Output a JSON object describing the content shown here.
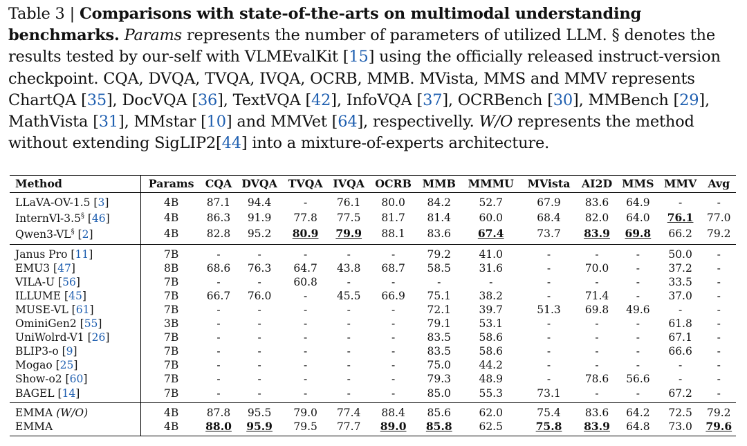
{
  "caption": {
    "label": "Table 3 | ",
    "bold": "Comparisons with state-of-the-arts on multimodal understanding benchmarks.",
    "p_params": "Params",
    "t1": " represents the number of parameters of utilized LLM. § denotes the results tested by our-self with VLMEvalKit [",
    "c1": "15",
    "t2": "] using the officially released instruct-version checkpoint. CQA, DVQA, TVQA, IVQA, OCRB, MMB. MVista, MMS and MMV represents ChartQA [",
    "c2": "35",
    "t3": "], DocVQA [",
    "c3": "36",
    "t4": "], TextVQA [",
    "c4": "42",
    "t5": "], InfoVQA [",
    "c5": "37",
    "t6": "], OCRBench [",
    "c6": "30",
    "t7": "], MMBench [",
    "c7": "29",
    "t8": "], MathVista [",
    "c8": "31",
    "t9": "], MMstar [",
    "c9": "10",
    "t10": "] and MMVet [",
    "c10": "64",
    "t11": "], respectivelly. ",
    "wo": "W/O",
    "t12": " represents the method without extending SigLIP2[",
    "c11": "44",
    "t13": "] into a mixture-of-experts architecture."
  },
  "table": {
    "headers": [
      "Method",
      "Params",
      "CQA",
      "DVQA",
      "TVQA",
      "IVQA",
      "OCRB",
      "MMB",
      "MMMU",
      "MVista",
      "AI2D",
      "MMS",
      "MMV",
      "Avg"
    ],
    "groups": [
      [
        {
          "name": "LLaVA-OV-1.5 [",
          "cite": "3",
          "sup": "",
          "name_end": "]",
          "cells": [
            "4B",
            "87.1",
            "94.4",
            "-",
            "76.1",
            "80.0",
            "84.2",
            "52.7",
            "67.9",
            "83.6",
            "64.9",
            "-",
            "-"
          ],
          "bold": []
        },
        {
          "name": "InternVl-3.5",
          "sup": "§",
          "cite_pre": " [",
          "cite": "46",
          "name_end": "]",
          "cells": [
            "4B",
            "86.3",
            "91.9",
            "77.8",
            "77.5",
            "81.7",
            "81.4",
            "60.0",
            "68.4",
            "82.0",
            "64.0",
            "76.1",
            "77.0"
          ],
          "bold": [
            11
          ]
        },
        {
          "name": "Qwen3-VL",
          "sup": "§",
          "cite_pre": " [",
          "cite": "2",
          "name_end": "]",
          "cells": [
            "4B",
            "82.8",
            "95.2",
            "80.9",
            "79.9",
            "88.1",
            "83.6",
            "67.4",
            "73.7",
            "83.9",
            "69.8",
            "66.2",
            "79.2"
          ],
          "bold": [
            3,
            4,
            7,
            9,
            10
          ]
        }
      ],
      [
        {
          "name": "Janus Pro [",
          "cite": "11",
          "name_end": "]",
          "cells": [
            "7B",
            "-",
            "-",
            "-",
            "-",
            "-",
            "79.2",
            "41.0",
            "-",
            "-",
            "-",
            "50.0",
            "-"
          ],
          "bold": []
        },
        {
          "name": "EMU3 [",
          "cite": "47",
          "name_end": "]",
          "cells": [
            "8B",
            "68.6",
            "76.3",
            "64.7",
            "43.8",
            "68.7",
            "58.5",
            "31.6",
            "-",
            "70.0",
            "-",
            "37.2",
            "-"
          ],
          "bold": []
        },
        {
          "name": "VILA-U [",
          "cite": "56",
          "name_end": "]",
          "cells": [
            "7B",
            "-",
            "-",
            "60.8",
            "-",
            "-",
            "-",
            "-",
            "-",
            "-",
            "-",
            "33.5",
            "-"
          ],
          "bold": []
        },
        {
          "name": "ILLUME [",
          "cite": "45",
          "name_end": "]",
          "cells": [
            "7B",
            "66.7",
            "76.0",
            "-",
            "45.5",
            "66.9",
            "75.1",
            "38.2",
            "-",
            "71.4",
            "-",
            "37.0",
            "-"
          ],
          "bold": []
        },
        {
          "name": "MUSE-VL [",
          "cite": "61",
          "name_end": "]",
          "cells": [
            "7B",
            "-",
            "-",
            "-",
            "-",
            "-",
            "72.1",
            "39.7",
            "51.3",
            "69.8",
            "49.6",
            "-",
            "-"
          ],
          "bold": []
        },
        {
          "name": "OminiGen2 [",
          "cite": "55",
          "name_end": "]",
          "cells": [
            "3B",
            "-",
            "-",
            "-",
            "-",
            "-",
            "79.1",
            "53.1",
            "-",
            "-",
            "-",
            "61.8",
            "-"
          ],
          "bold": []
        },
        {
          "name": "UniWolrd-V1 [",
          "cite": "26",
          "name_end": "]",
          "cells": [
            "7B",
            "-",
            "-",
            "-",
            "-",
            "-",
            "83.5",
            "58.6",
            "-",
            "-",
            "-",
            "67.1",
            "-"
          ],
          "bold": []
        },
        {
          "name": "BLIP3-o [",
          "cite": "9",
          "name_end": "]",
          "cells": [
            "7B",
            "-",
            "-",
            "-",
            "-",
            "-",
            "83.5",
            "58.6",
            "-",
            "-",
            "-",
            "66.6",
            "-"
          ],
          "bold": []
        },
        {
          "name": "Mogao [",
          "cite": "25",
          "name_end": "]",
          "cells": [
            "7B",
            "-",
            "-",
            "-",
            "-",
            "-",
            "75.0",
            "44.2",
            "-",
            "-",
            "-",
            "-",
            "-"
          ],
          "bold": []
        },
        {
          "name": "Show-o2 [",
          "cite": "60",
          "name_end": "]",
          "cells": [
            "7B",
            "-",
            "-",
            "-",
            "-",
            "-",
            "79.3",
            "48.9",
            "-",
            "78.6",
            "56.6",
            "-",
            "-"
          ],
          "bold": []
        },
        {
          "name": "BAGEL [",
          "cite": "14",
          "name_end": "]",
          "cells": [
            "7B",
            "-",
            "-",
            "-",
            "-",
            "-",
            "85.0",
            "55.3",
            "73.1",
            "-",
            "-",
            "67.2",
            "-"
          ],
          "bold": []
        }
      ],
      [
        {
          "name": "EMMA ",
          "italic": "(W/O)",
          "cells": [
            "4B",
            "87.8",
            "95.5",
            "79.0",
            "77.4",
            "88.4",
            "85.6",
            "62.0",
            "75.4",
            "83.6",
            "64.2",
            "72.5",
            "79.2"
          ],
          "bold": []
        },
        {
          "name": "EMMA",
          "cells": [
            "4B",
            "88.0",
            "95.9",
            "79.5",
            "77.7",
            "89.0",
            "85.8",
            "62.5",
            "75.8",
            "83.9",
            "64.8",
            "73.0",
            "79.6"
          ],
          "bold": [
            1,
            2,
            5,
            6,
            8,
            9,
            12
          ]
        }
      ]
    ]
  }
}
